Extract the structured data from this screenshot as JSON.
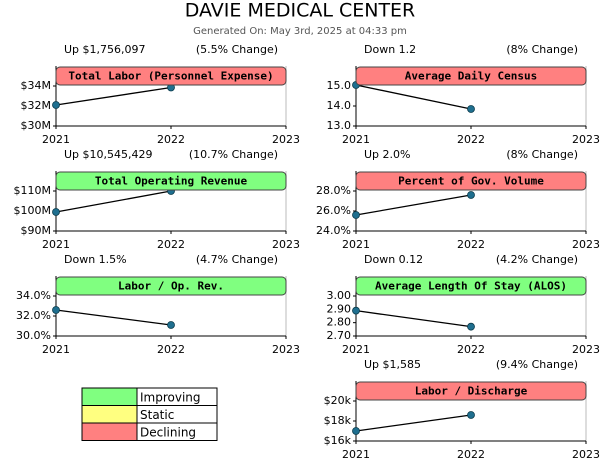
{
  "title": "DAVIE MEDICAL CENTER",
  "subtitle": "Generated On: May 3rd, 2025 at 04:33 pm",
  "chart_data": [
    {
      "type": "line",
      "title": "Total Labor (Personnel Expense)",
      "change": "Up $1,756,097",
      "percent_change": "(5.5% Change)",
      "color": "#ff8080",
      "marker_color": "#1f6f8f",
      "x": [
        2021,
        2022
      ],
      "values": [
        32.1,
        33.85
      ],
      "xlim": [
        2021,
        2023
      ],
      "xticks": [
        2021,
        2022,
        2023
      ],
      "ylim": [
        30,
        36
      ],
      "yticks": [
        {
          "value": 30,
          "label": "$30M"
        },
        {
          "value": 32,
          "label": "$32M"
        },
        {
          "value": 34,
          "label": "$34M"
        }
      ]
    },
    {
      "type": "line",
      "title": "Average Daily Census",
      "change": "Down 1.2",
      "percent_change": "(8% Change)",
      "color": "#ff8080",
      "marker_color": "#1f6f8f",
      "x": [
        2021,
        2022
      ],
      "values": [
        15.05,
        13.85
      ],
      "xlim": [
        2021,
        2023
      ],
      "xticks": [
        2021,
        2022,
        2023
      ],
      "ylim": [
        13,
        16
      ],
      "yticks": [
        {
          "value": 13,
          "label": "13.0"
        },
        {
          "value": 14,
          "label": "14.0"
        },
        {
          "value": 15,
          "label": "15.0"
        }
      ]
    },
    {
      "type": "line",
      "title": "Total Operating Revenue",
      "change": "Up $10,545,429",
      "percent_change": "(10.7% Change)",
      "color": "#80ff80",
      "marker_color": "#1f6f8f",
      "x": [
        2021,
        2022
      ],
      "values": [
        99.5,
        110.0
      ],
      "xlim": [
        2021,
        2023
      ],
      "xticks": [
        2021,
        2022,
        2023
      ],
      "ylim": [
        90,
        120
      ],
      "yticks": [
        {
          "value": 90,
          "label": "$90M"
        },
        {
          "value": 100,
          "label": "$100M"
        },
        {
          "value": 110,
          "label": "$110M"
        }
      ]
    },
    {
      "type": "line",
      "title": "Percent of Gov. Volume",
      "change": "Up 2.0%",
      "percent_change": "(8% Change)",
      "color": "#ff8080",
      "marker_color": "#1f6f8f",
      "x": [
        2021,
        2022
      ],
      "values": [
        25.6,
        27.6
      ],
      "xlim": [
        2021,
        2023
      ],
      "xticks": [
        2021,
        2022,
        2023
      ],
      "ylim": [
        24,
        30
      ],
      "yticks": [
        {
          "value": 24,
          "label": "24.0%"
        },
        {
          "value": 26,
          "label": "26.0%"
        },
        {
          "value": 28,
          "label": "28.0%"
        }
      ]
    },
    {
      "type": "line",
      "title": "Labor / Op. Rev.",
      "change": "Down 1.5%",
      "percent_change": "(4.7% Change)",
      "color": "#80ff80",
      "marker_color": "#1f6f8f",
      "x": [
        2021,
        2022
      ],
      "values": [
        32.6,
        31.1
      ],
      "xlim": [
        2021,
        2023
      ],
      "xticks": [
        2021,
        2022,
        2023
      ],
      "ylim": [
        30,
        36
      ],
      "yticks": [
        {
          "value": 30,
          "label": "30.0%"
        },
        {
          "value": 32,
          "label": "32.0%"
        },
        {
          "value": 34,
          "label": "34.0%"
        }
      ]
    },
    {
      "type": "line",
      "title": "Average Length Of Stay (ALOS)",
      "change": "Down 0.12",
      "percent_change": "(4.2% Change)",
      "color": "#80ff80",
      "marker_color": "#1f6f8f",
      "x": [
        2021,
        2022
      ],
      "values": [
        2.89,
        2.77
      ],
      "xlim": [
        2021,
        2023
      ],
      "xticks": [
        2021,
        2022,
        2023
      ],
      "ylim": [
        2.7,
        3.15
      ],
      "yticks": [
        {
          "value": 2.7,
          "label": "2.70"
        },
        {
          "value": 2.8,
          "label": "2.80"
        },
        {
          "value": 2.9,
          "label": "2.90"
        },
        {
          "value": 3.0,
          "label": "3.00"
        }
      ]
    },
    {
      "type": "line",
      "title": "Labor / Discharge",
      "change": "Up $1,585",
      "percent_change": "(9.4% Change)",
      "color": "#ff8080",
      "marker_color": "#1f6f8f",
      "x": [
        2021,
        2022
      ],
      "values": [
        17.0,
        18.6
      ],
      "xlim": [
        2021,
        2023
      ],
      "xticks": [
        2021,
        2022,
        2023
      ],
      "ylim": [
        16,
        22
      ],
      "yticks": [
        {
          "value": 16,
          "label": "$16k"
        },
        {
          "value": 18,
          "label": "$18k"
        },
        {
          "value": 20,
          "label": "$20k"
        }
      ]
    }
  ],
  "legend": [
    {
      "label": "Improving",
      "color": "#80ff80"
    },
    {
      "label": "Static",
      "color": "#ffff80"
    },
    {
      "label": "Declining",
      "color": "#ff8080"
    }
  ]
}
